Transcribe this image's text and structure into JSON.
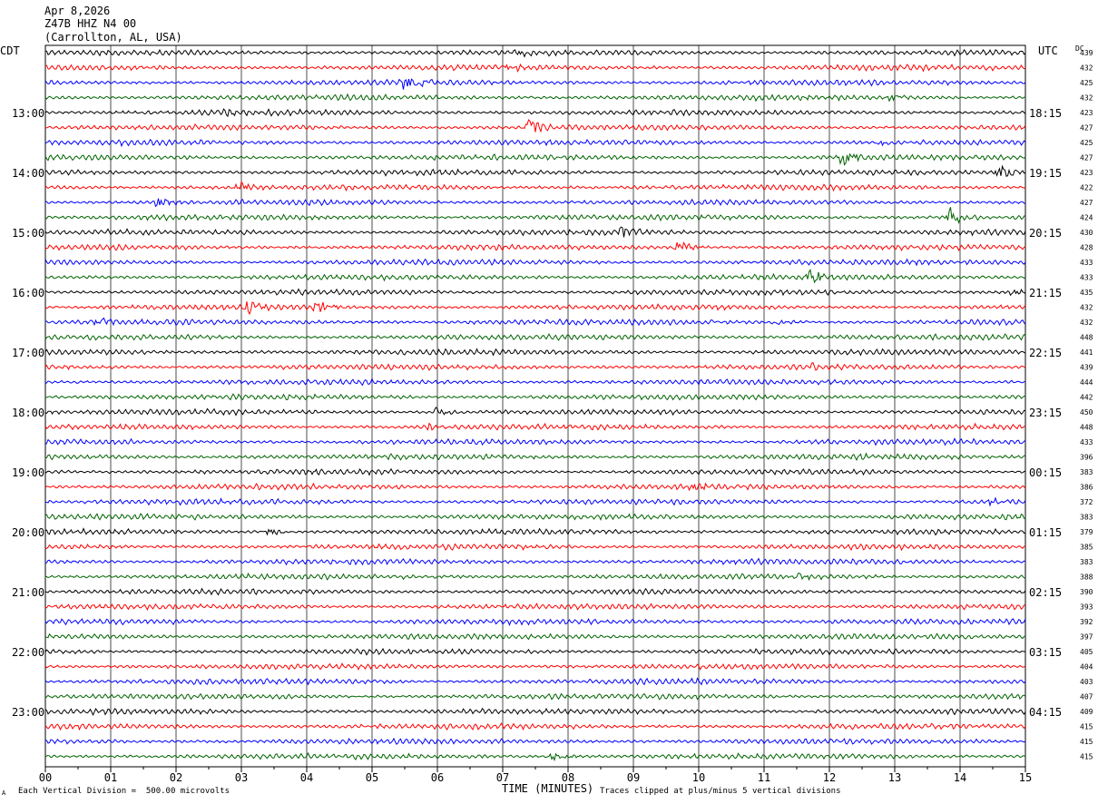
{
  "header": {
    "date": "Apr 8,2026",
    "station": "Z47B HHZ N4 00",
    "location": "(Carrollton, AL, USA)"
  },
  "left_tz": "CDT",
  "right_tz": "UTC",
  "dc_label": "DC",
  "footer": {
    "scale": "Each Vertical Division =  500.00 microvolts",
    "clip": "Traces clipped at plus/minus 5 vertical divisions",
    "corner_mark": "A"
  },
  "chart_data": {
    "type": "line",
    "title": "",
    "xlabel": "TIME (MINUTES)",
    "x_ticks": [
      "00",
      "01",
      "02",
      "03",
      "04",
      "05",
      "06",
      "07",
      "08",
      "09",
      "10",
      "11",
      "12",
      "13",
      "14",
      "15"
    ],
    "xlim": [
      0,
      15
    ],
    "grid": true,
    "trace_colors": [
      "#000000",
      "#ff0000",
      "#0000ff",
      "#006400"
    ],
    "left_labels": [
      {
        "row": 4,
        "text": "13:00"
      },
      {
        "row": 8,
        "text": "14:00"
      },
      {
        "row": 12,
        "text": "15:00"
      },
      {
        "row": 16,
        "text": "16:00"
      },
      {
        "row": 20,
        "text": "17:00"
      },
      {
        "row": 24,
        "text": "18:00"
      },
      {
        "row": 28,
        "text": "19:00"
      },
      {
        "row": 32,
        "text": "20:00"
      },
      {
        "row": 36,
        "text": "21:00"
      },
      {
        "row": 40,
        "text": "22:00"
      },
      {
        "row": 44,
        "text": "23:00"
      }
    ],
    "right_labels": [
      {
        "row": 4,
        "text": "18:15"
      },
      {
        "row": 8,
        "text": "19:15"
      },
      {
        "row": 12,
        "text": "20:15"
      },
      {
        "row": 16,
        "text": "21:15"
      },
      {
        "row": 20,
        "text": "22:15"
      },
      {
        "row": 24,
        "text": "23:15"
      },
      {
        "row": 28,
        "text": "00:15"
      },
      {
        "row": 32,
        "text": "01:15"
      },
      {
        "row": 36,
        "text": "02:15"
      },
      {
        "row": 40,
        "text": "03:15"
      },
      {
        "row": 44,
        "text": "04:15"
      }
    ],
    "dc_offsets": [
      "439",
      "432",
      "425",
      "432",
      "423",
      "427",
      "425",
      "427",
      "423",
      "422",
      "427",
      "424",
      "430",
      "428",
      "433",
      "433",
      "435",
      "432",
      "432",
      "448",
      "441",
      "439",
      "444",
      "442",
      "450",
      "448",
      "433",
      "396",
      "383",
      "386",
      "372",
      "383",
      "379",
      "385",
      "383",
      "388",
      "390",
      "393",
      "392",
      "397",
      "405",
      "404",
      "403",
      "407",
      "409",
      "415",
      "415",
      "415"
    ],
    "events": [
      {
        "row": 0,
        "minute": 7.3,
        "amp": 4
      },
      {
        "row": 1,
        "minute": 7.05,
        "amp": 4
      },
      {
        "row": 2,
        "minute": 5.5,
        "amp": 9
      },
      {
        "row": 3,
        "minute": 12.95,
        "amp": 5
      },
      {
        "row": 4,
        "minute": 2.75,
        "amp": 5
      },
      {
        "row": 5,
        "minute": 7.4,
        "amp": 14
      },
      {
        "row": 6,
        "minute": 12.75,
        "amp": 3
      },
      {
        "row": 7,
        "minute": 12.2,
        "amp": 11
      },
      {
        "row": 8,
        "minute": 14.6,
        "amp": 9
      },
      {
        "row": 9,
        "minute": 2.95,
        "amp": 7
      },
      {
        "row": 10,
        "minute": 1.7,
        "amp": 8
      },
      {
        "row": 11,
        "minute": 13.85,
        "amp": 14
      },
      {
        "row": 12,
        "minute": 8.8,
        "amp": 10
      },
      {
        "row": 13,
        "minute": 9.7,
        "amp": 8
      },
      {
        "row": 15,
        "minute": 11.7,
        "amp": 10
      },
      {
        "row": 16,
        "minute": 14.8,
        "amp": 5
      },
      {
        "row": 17,
        "minute": 4.15,
        "amp": 8
      },
      {
        "row": 17,
        "minute": 3.1,
        "amp": 6
      },
      {
        "row": 18,
        "minute": 0.8,
        "amp": 5
      },
      {
        "row": 18,
        "minute": 11.2,
        "amp": 4
      },
      {
        "row": 21,
        "minute": 11.7,
        "amp": 4
      },
      {
        "row": 24,
        "minute": 6.0,
        "amp": 6
      },
      {
        "row": 25,
        "minute": 5.9,
        "amp": 5
      },
      {
        "row": 29,
        "minute": 9.9,
        "amp": 5
      },
      {
        "row": 30,
        "minute": 14.5,
        "amp": 5
      },
      {
        "row": 32,
        "minute": 3.4,
        "amp": 7
      },
      {
        "row": 33,
        "minute": 7.3,
        "amp": 4
      },
      {
        "row": 35,
        "minute": 11.45,
        "amp": 5
      },
      {
        "row": 47,
        "minute": 7.75,
        "amp": 9
      }
    ]
  }
}
